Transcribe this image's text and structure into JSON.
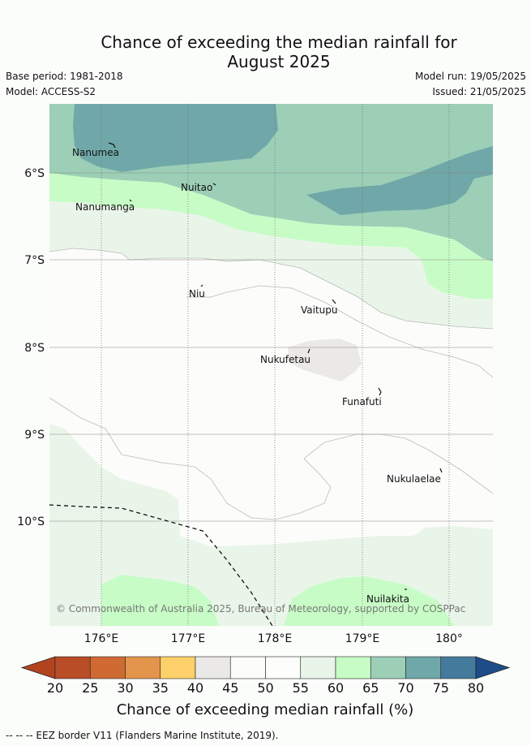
{
  "title_line1": "Chance of exceeding the median rainfall for",
  "title_line2": "August 2025",
  "base_period": "Base period: 1981-2018",
  "model": "Model: ACCESS-S2",
  "model_run": "Model run: 19/05/2025",
  "issued": "Issued: 21/05/2025",
  "axes": {
    "lat_labels": [
      "6°S",
      "7°S",
      "8°S",
      "9°S",
      "10°S"
    ],
    "lon_labels": [
      "176°E",
      "177°E",
      "178°E",
      "179°E",
      "180°"
    ]
  },
  "places": [
    "Nanumea",
    "Nuitao",
    "Nanumanga",
    "Niu",
    "Vaitupu",
    "Nukufetau",
    "Funafuti",
    "Nukulaelae",
    "Nuilakita"
  ],
  "copyright": "© Commonwealth of Australia 2025, Bureau of Meteorology, supported by COSPPac",
  "colorbar": {
    "title": "Chance of exceeding median rainfall (%)",
    "ticks": [
      "20",
      "25",
      "30",
      "35",
      "40",
      "45",
      "50",
      "55",
      "60",
      "65",
      "70",
      "75",
      "80"
    ],
    "colors": [
      "#b2431f",
      "#b84d27",
      "#d06a33",
      "#e3954b",
      "#fdd069",
      "#ebe9e7",
      "#fcfdfb",
      "#fdfefc",
      "#eaf5e9",
      "#c8fcc6",
      "#9ccfb6",
      "#70a8a9",
      "#447a9b",
      "#1d4d88"
    ]
  },
  "footer": "-- -- -- EEZ border V11 (Flanders Marine Institute, 2019)."
}
